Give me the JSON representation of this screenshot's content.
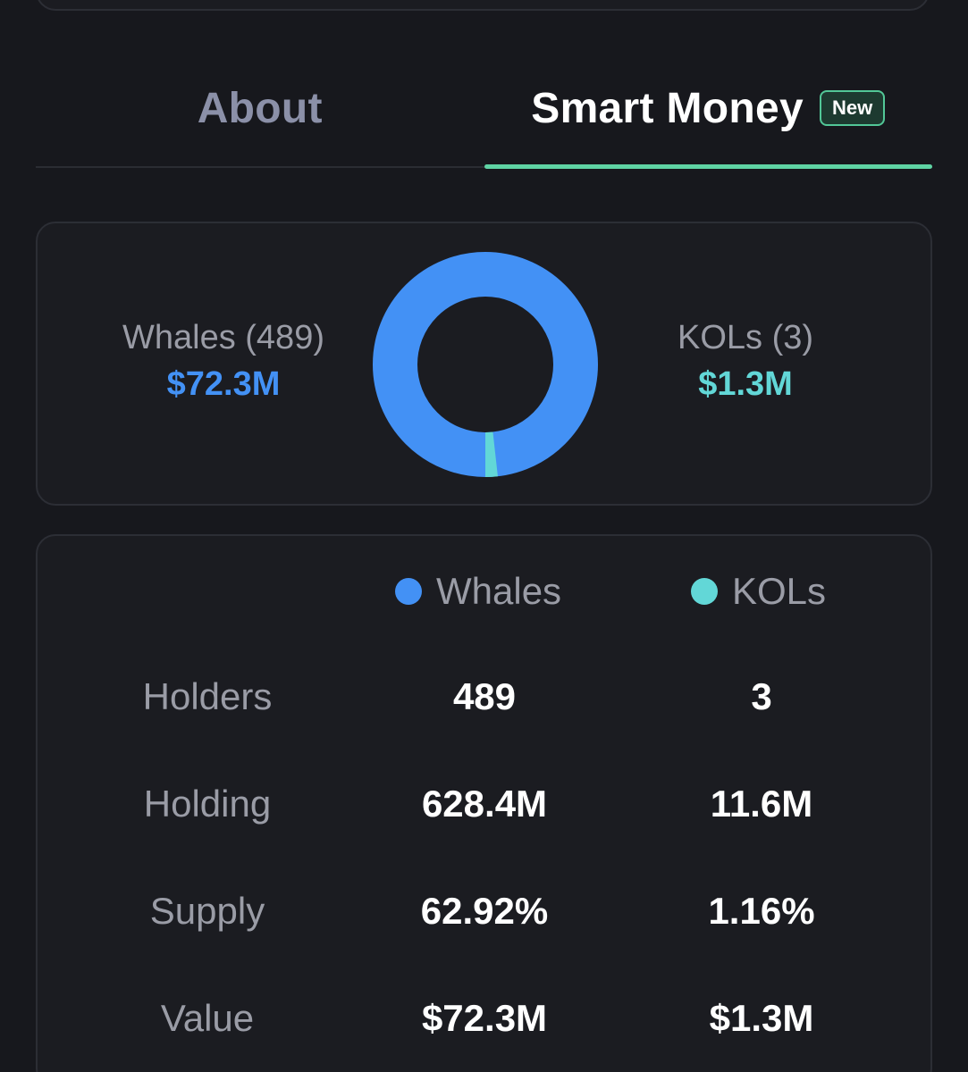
{
  "tabs": {
    "about_label": "About",
    "smart_money_label": "Smart Money",
    "new_badge": "New"
  },
  "summary": {
    "whales_label": "Whales (489)",
    "whales_value": "$72.3M",
    "kols_label": "KOLs (3)",
    "kols_value": "$1.3M"
  },
  "donut": {
    "whales_share": 72.3,
    "kols_share": 1.3,
    "whales_color": "#4391f5",
    "kols_color": "#62d7d7"
  },
  "table": {
    "legend_whales": "Whales",
    "legend_kols": "KOLs",
    "rows": [
      {
        "label": "Holders",
        "whales": "489",
        "kols": "3"
      },
      {
        "label": "Holding",
        "whales": "628.4M",
        "kols": "11.6M"
      },
      {
        "label": "Supply",
        "whales": "62.92%",
        "kols": "1.16%"
      },
      {
        "label": "Value",
        "whales": "$72.3M",
        "kols": "$1.3M"
      }
    ]
  },
  "colors": {
    "background": "#17181d",
    "card": "#1b1c21",
    "accent_green": "#5fd3a4",
    "whales": "#4391f5",
    "kols": "#62d7d7"
  }
}
